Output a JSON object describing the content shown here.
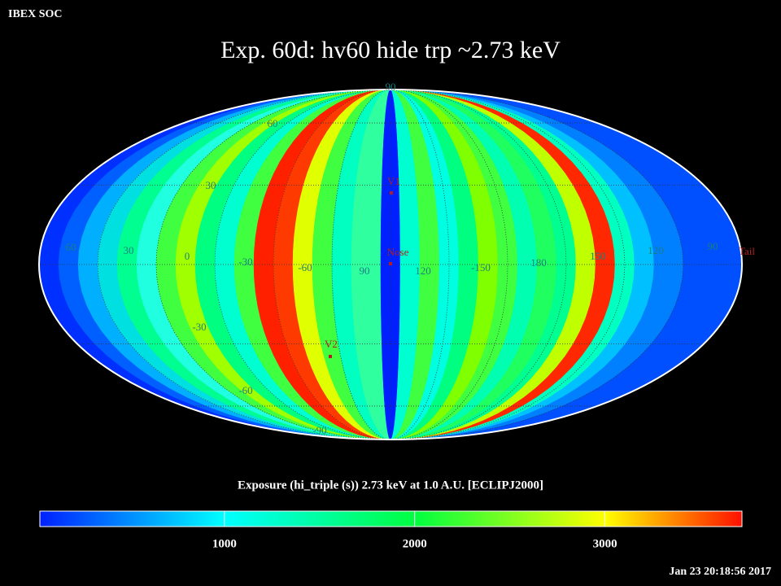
{
  "header": {
    "org": "IBEX SOC",
    "title": "Exp.   60d: hv60 hide trp ~2.73 keV",
    "timestamp": "Jan 23 20:18:56 2017"
  },
  "map": {
    "latitude_labels": [
      90,
      60,
      30,
      -30,
      -60,
      -90
    ],
    "longitude_labels": [
      60,
      30,
      0,
      -30,
      -60,
      90,
      120,
      -150,
      180,
      150,
      120,
      90
    ],
    "markers": [
      "V1",
      "Nose",
      "V2"
    ],
    "edge_label": "Tail"
  },
  "colorbar": {
    "title": "Exposure (hi_triple (s))  2.73 keV at 1.0 A.U. [ECLIPJ2000]",
    "lim": [
      30,
      3720
    ],
    "ticks": [
      1000,
      2000,
      3000
    ]
  }
}
